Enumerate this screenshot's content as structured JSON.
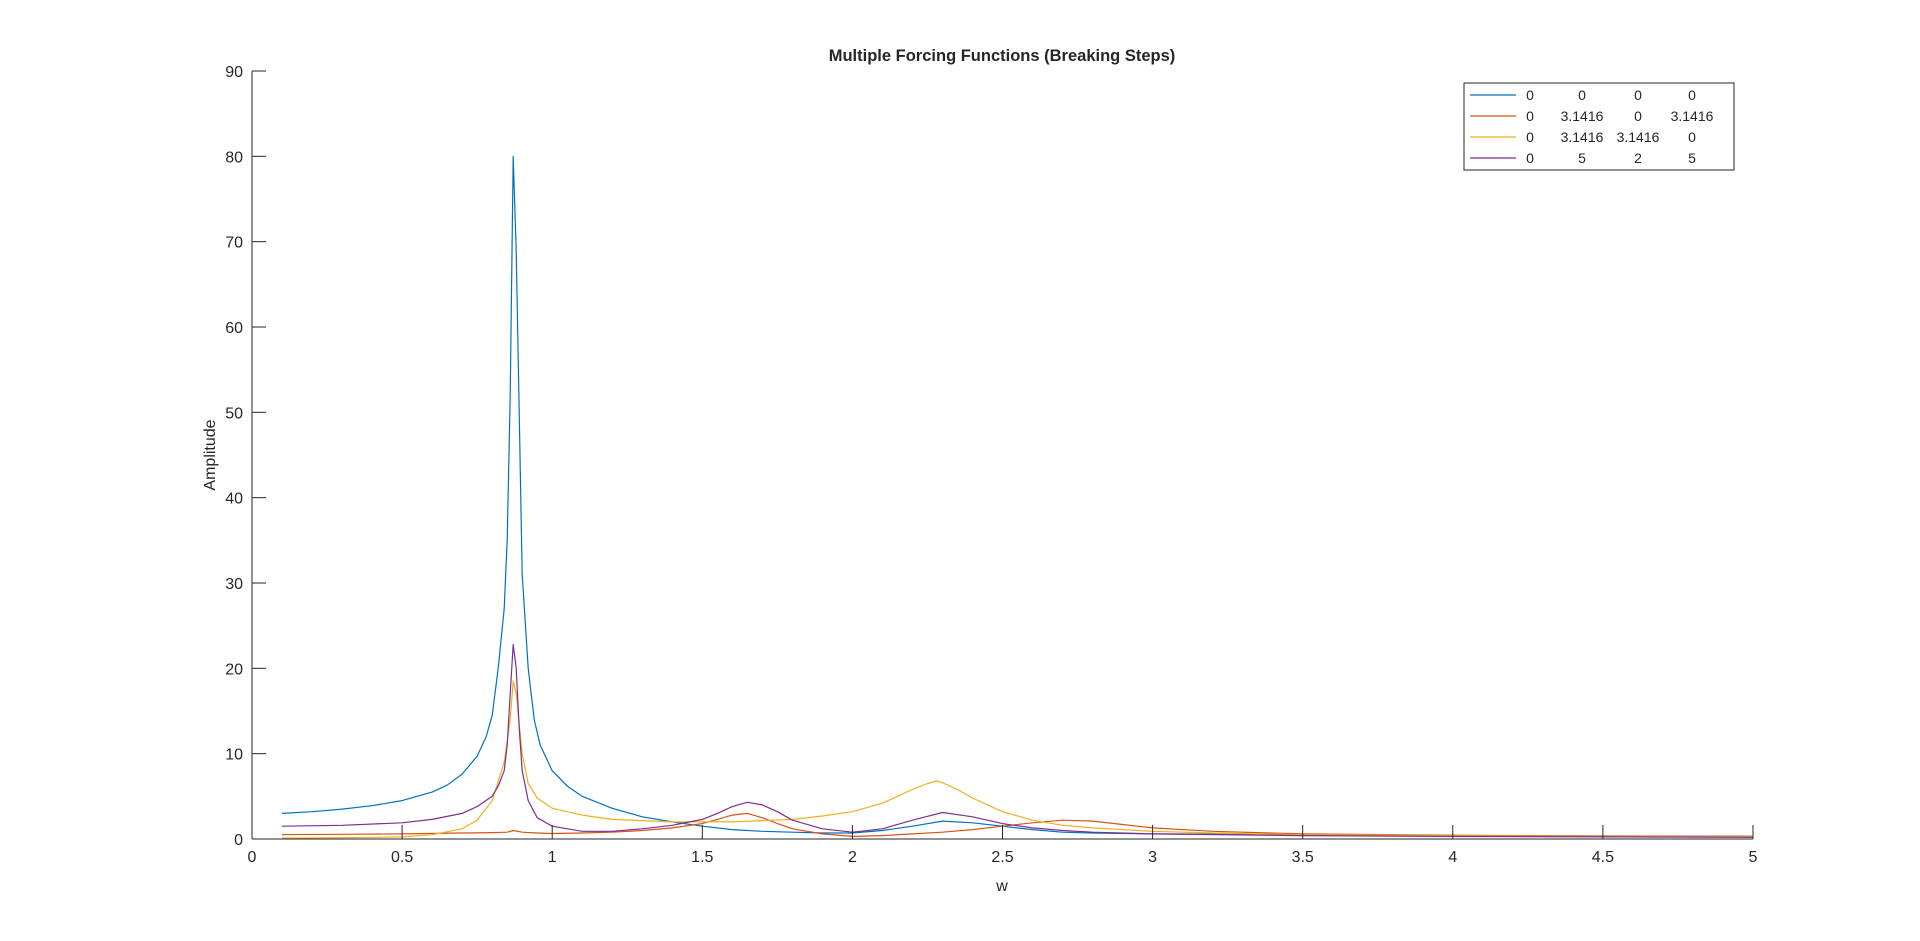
{
  "chart_data": {
    "type": "line",
    "title": "Multiple Forcing Functions (Breaking Steps)",
    "xlabel": "w",
    "ylabel": "Amplitude",
    "xlim": [
      0,
      5
    ],
    "ylim": [
      0,
      90
    ],
    "xticks": [
      0,
      0.5,
      1,
      1.5,
      2,
      2.5,
      3,
      3.5,
      4,
      4.5,
      5
    ],
    "xtick_labels": [
      "0",
      "0.5",
      "1",
      "1.5",
      "2",
      "2.5",
      "3",
      "3.5",
      "4",
      "4.5",
      "5"
    ],
    "yticks": [
      0,
      10,
      20,
      30,
      40,
      50,
      60,
      70,
      80,
      90
    ],
    "ytick_labels": [
      "0",
      "10",
      "20",
      "30",
      "40",
      "50",
      "60",
      "70",
      "80",
      "90"
    ],
    "grid": false,
    "legend_position": "top-right",
    "series": [
      {
        "legend_cells": [
          "0",
          "0",
          "0",
          "0"
        ],
        "color": "#0072BD",
        "x": [
          0.1,
          0.2,
          0.3,
          0.4,
          0.5,
          0.6,
          0.65,
          0.7,
          0.75,
          0.78,
          0.8,
          0.82,
          0.84,
          0.85,
          0.86,
          0.87,
          0.88,
          0.89,
          0.9,
          0.92,
          0.94,
          0.96,
          1.0,
          1.05,
          1.1,
          1.2,
          1.3,
          1.4,
          1.5,
          1.6,
          1.7,
          1.8,
          1.9,
          2.0,
          2.1,
          2.2,
          2.3,
          2.4,
          2.5,
          2.6,
          2.7,
          2.8,
          3.0,
          3.5,
          4.0,
          4.5,
          5.0
        ],
        "y": [
          3.0,
          3.2,
          3.5,
          3.9,
          4.5,
          5.5,
          6.3,
          7.6,
          9.7,
          12.0,
          14.5,
          20.0,
          27.0,
          35.0,
          52.0,
          80.0,
          69.0,
          50.0,
          31.0,
          20.0,
          14.0,
          11.0,
          8.0,
          6.2,
          5.0,
          3.6,
          2.6,
          2.0,
          1.5,
          1.1,
          0.9,
          0.8,
          0.7,
          0.7,
          1.0,
          1.5,
          2.1,
          1.9,
          1.5,
          1.1,
          0.8,
          0.7,
          0.6,
          0.5,
          0.4,
          0.35,
          0.3
        ]
      },
      {
        "legend_cells": [
          "0",
          "3.1416",
          "0",
          "3.1416"
        ],
        "color": "#D95319",
        "x": [
          0.1,
          0.3,
          0.5,
          0.7,
          0.8,
          0.85,
          0.87,
          0.9,
          0.95,
          1.0,
          1.1,
          1.2,
          1.3,
          1.4,
          1.5,
          1.55,
          1.6,
          1.65,
          1.7,
          1.75,
          1.8,
          1.9,
          2.0,
          2.1,
          2.2,
          2.3,
          2.4,
          2.5,
          2.6,
          2.7,
          2.8,
          2.9,
          3.0,
          3.2,
          3.5,
          4.0,
          4.5,
          5.0
        ],
        "y": [
          0.5,
          0.55,
          0.6,
          0.7,
          0.75,
          0.8,
          1.0,
          0.8,
          0.7,
          0.65,
          0.7,
          0.8,
          1.0,
          1.3,
          1.8,
          2.3,
          2.8,
          3.0,
          2.5,
          1.8,
          1.2,
          0.6,
          0.3,
          0.4,
          0.6,
          0.8,
          1.1,
          1.5,
          1.9,
          2.2,
          2.1,
          1.7,
          1.3,
          0.9,
          0.6,
          0.45,
          0.35,
          0.3
        ]
      },
      {
        "legend_cells": [
          "0",
          "3.1416",
          "3.1416",
          "0"
        ],
        "color": "#EDB120",
        "x": [
          0.1,
          0.3,
          0.5,
          0.6,
          0.7,
          0.75,
          0.8,
          0.84,
          0.86,
          0.87,
          0.88,
          0.9,
          0.92,
          0.95,
          1.0,
          1.1,
          1.2,
          1.4,
          1.6,
          1.8,
          1.9,
          2.0,
          2.1,
          2.15,
          2.2,
          2.25,
          2.28,
          2.3,
          2.35,
          2.4,
          2.5,
          2.6,
          2.7,
          2.8,
          3.0,
          3.2,
          3.5,
          4.0,
          4.5,
          5.0
        ],
        "y": [
          0.1,
          0.15,
          0.25,
          0.5,
          1.2,
          2.2,
          4.5,
          9.0,
          14.0,
          18.5,
          17.0,
          10.0,
          6.5,
          4.8,
          3.6,
          2.8,
          2.3,
          2.0,
          2.0,
          2.3,
          2.7,
          3.2,
          4.2,
          5.0,
          5.8,
          6.5,
          6.8,
          6.6,
          5.8,
          4.8,
          3.2,
          2.2,
          1.6,
          1.3,
          0.9,
          0.7,
          0.5,
          0.4,
          0.3,
          0.25
        ]
      },
      {
        "legend_cells": [
          "0",
          "5",
          "2",
          "5"
        ],
        "color": "#7E2F8E",
        "x": [
          0.1,
          0.3,
          0.5,
          0.6,
          0.7,
          0.75,
          0.8,
          0.82,
          0.84,
          0.85,
          0.86,
          0.87,
          0.88,
          0.89,
          0.9,
          0.92,
          0.95,
          1.0,
          1.1,
          1.2,
          1.3,
          1.4,
          1.5,
          1.55,
          1.6,
          1.65,
          1.7,
          1.75,
          1.8,
          1.9,
          2.0,
          2.1,
          2.2,
          2.3,
          2.4,
          2.5,
          2.6,
          2.7,
          2.8,
          3.0,
          3.5,
          4.0,
          4.5,
          5.0
        ],
        "y": [
          1.5,
          1.6,
          1.9,
          2.3,
          3.0,
          3.8,
          5.0,
          6.2,
          8.0,
          11.0,
          17.0,
          22.8,
          20.0,
          13.0,
          8.0,
          4.5,
          2.5,
          1.5,
          0.9,
          0.9,
          1.2,
          1.6,
          2.3,
          3.0,
          3.8,
          4.3,
          4.0,
          3.2,
          2.2,
          1.2,
          0.8,
          1.2,
          2.2,
          3.1,
          2.6,
          1.8,
          1.3,
          1.0,
          0.8,
          0.6,
          0.4,
          0.3,
          0.25,
          0.2
        ]
      }
    ]
  }
}
